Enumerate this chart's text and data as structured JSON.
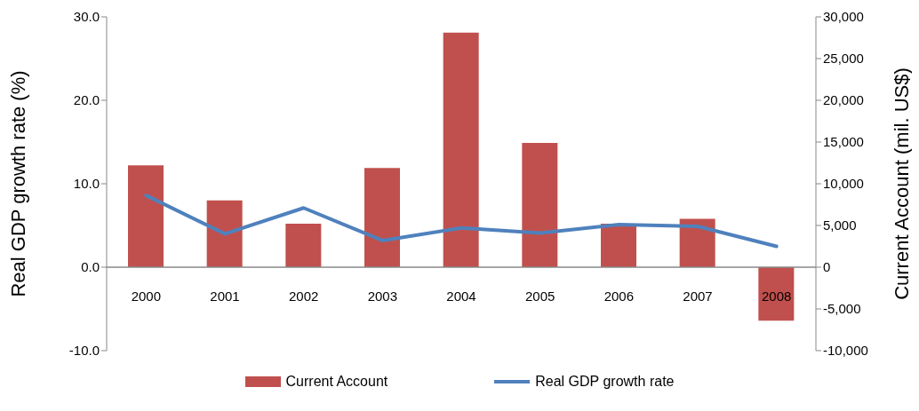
{
  "chart_data": {
    "type": "bar",
    "categories": [
      "2000",
      "2001",
      "2002",
      "2003",
      "2004",
      "2005",
      "2006",
      "2007",
      "2008"
    ],
    "series": [
      {
        "name": "Current Account",
        "axis": "y2",
        "color": "#c0504d",
        "values": [
          12200,
          8000,
          5200,
          11900,
          28100,
          14900,
          5200,
          5800,
          -6400
        ]
      },
      {
        "name": "Real GDP growth rate",
        "type": "line",
        "color": "#4f81bd",
        "values": [
          8.6,
          4.0,
          7.1,
          3.2,
          4.7,
          4.1,
          5.1,
          4.9,
          2.5
        ]
      }
    ],
    "ylabel": "Real GDP growth rate (%)",
    "y2label": "Current Account (mil. US$)",
    "ylim": [
      -10,
      30
    ],
    "yticks": [
      {
        "value": -10,
        "label": "-10.0"
      },
      {
        "value": 0,
        "label": "0.0"
      },
      {
        "value": 10,
        "label": "10.0"
      },
      {
        "value": 20,
        "label": "20.0"
      },
      {
        "value": 30,
        "label": "30.0"
      }
    ],
    "y2lim": [
      -10000,
      30000
    ],
    "y2ticks": [
      {
        "value": -10000,
        "label": "-10,000"
      },
      {
        "value": -5000,
        "label": "-5,000"
      },
      {
        "value": 0,
        "label": "0"
      },
      {
        "value": 5000,
        "label": "5,000"
      },
      {
        "value": 10000,
        "label": "10,000"
      },
      {
        "value": 15000,
        "label": "15,000"
      },
      {
        "value": 20000,
        "label": "20,000"
      },
      {
        "value": 25000,
        "label": "25,000"
      },
      {
        "value": 30000,
        "label": "30,000"
      }
    ],
    "grid": false,
    "legend": "bottom",
    "marker": "none",
    "line_style": "solid"
  }
}
